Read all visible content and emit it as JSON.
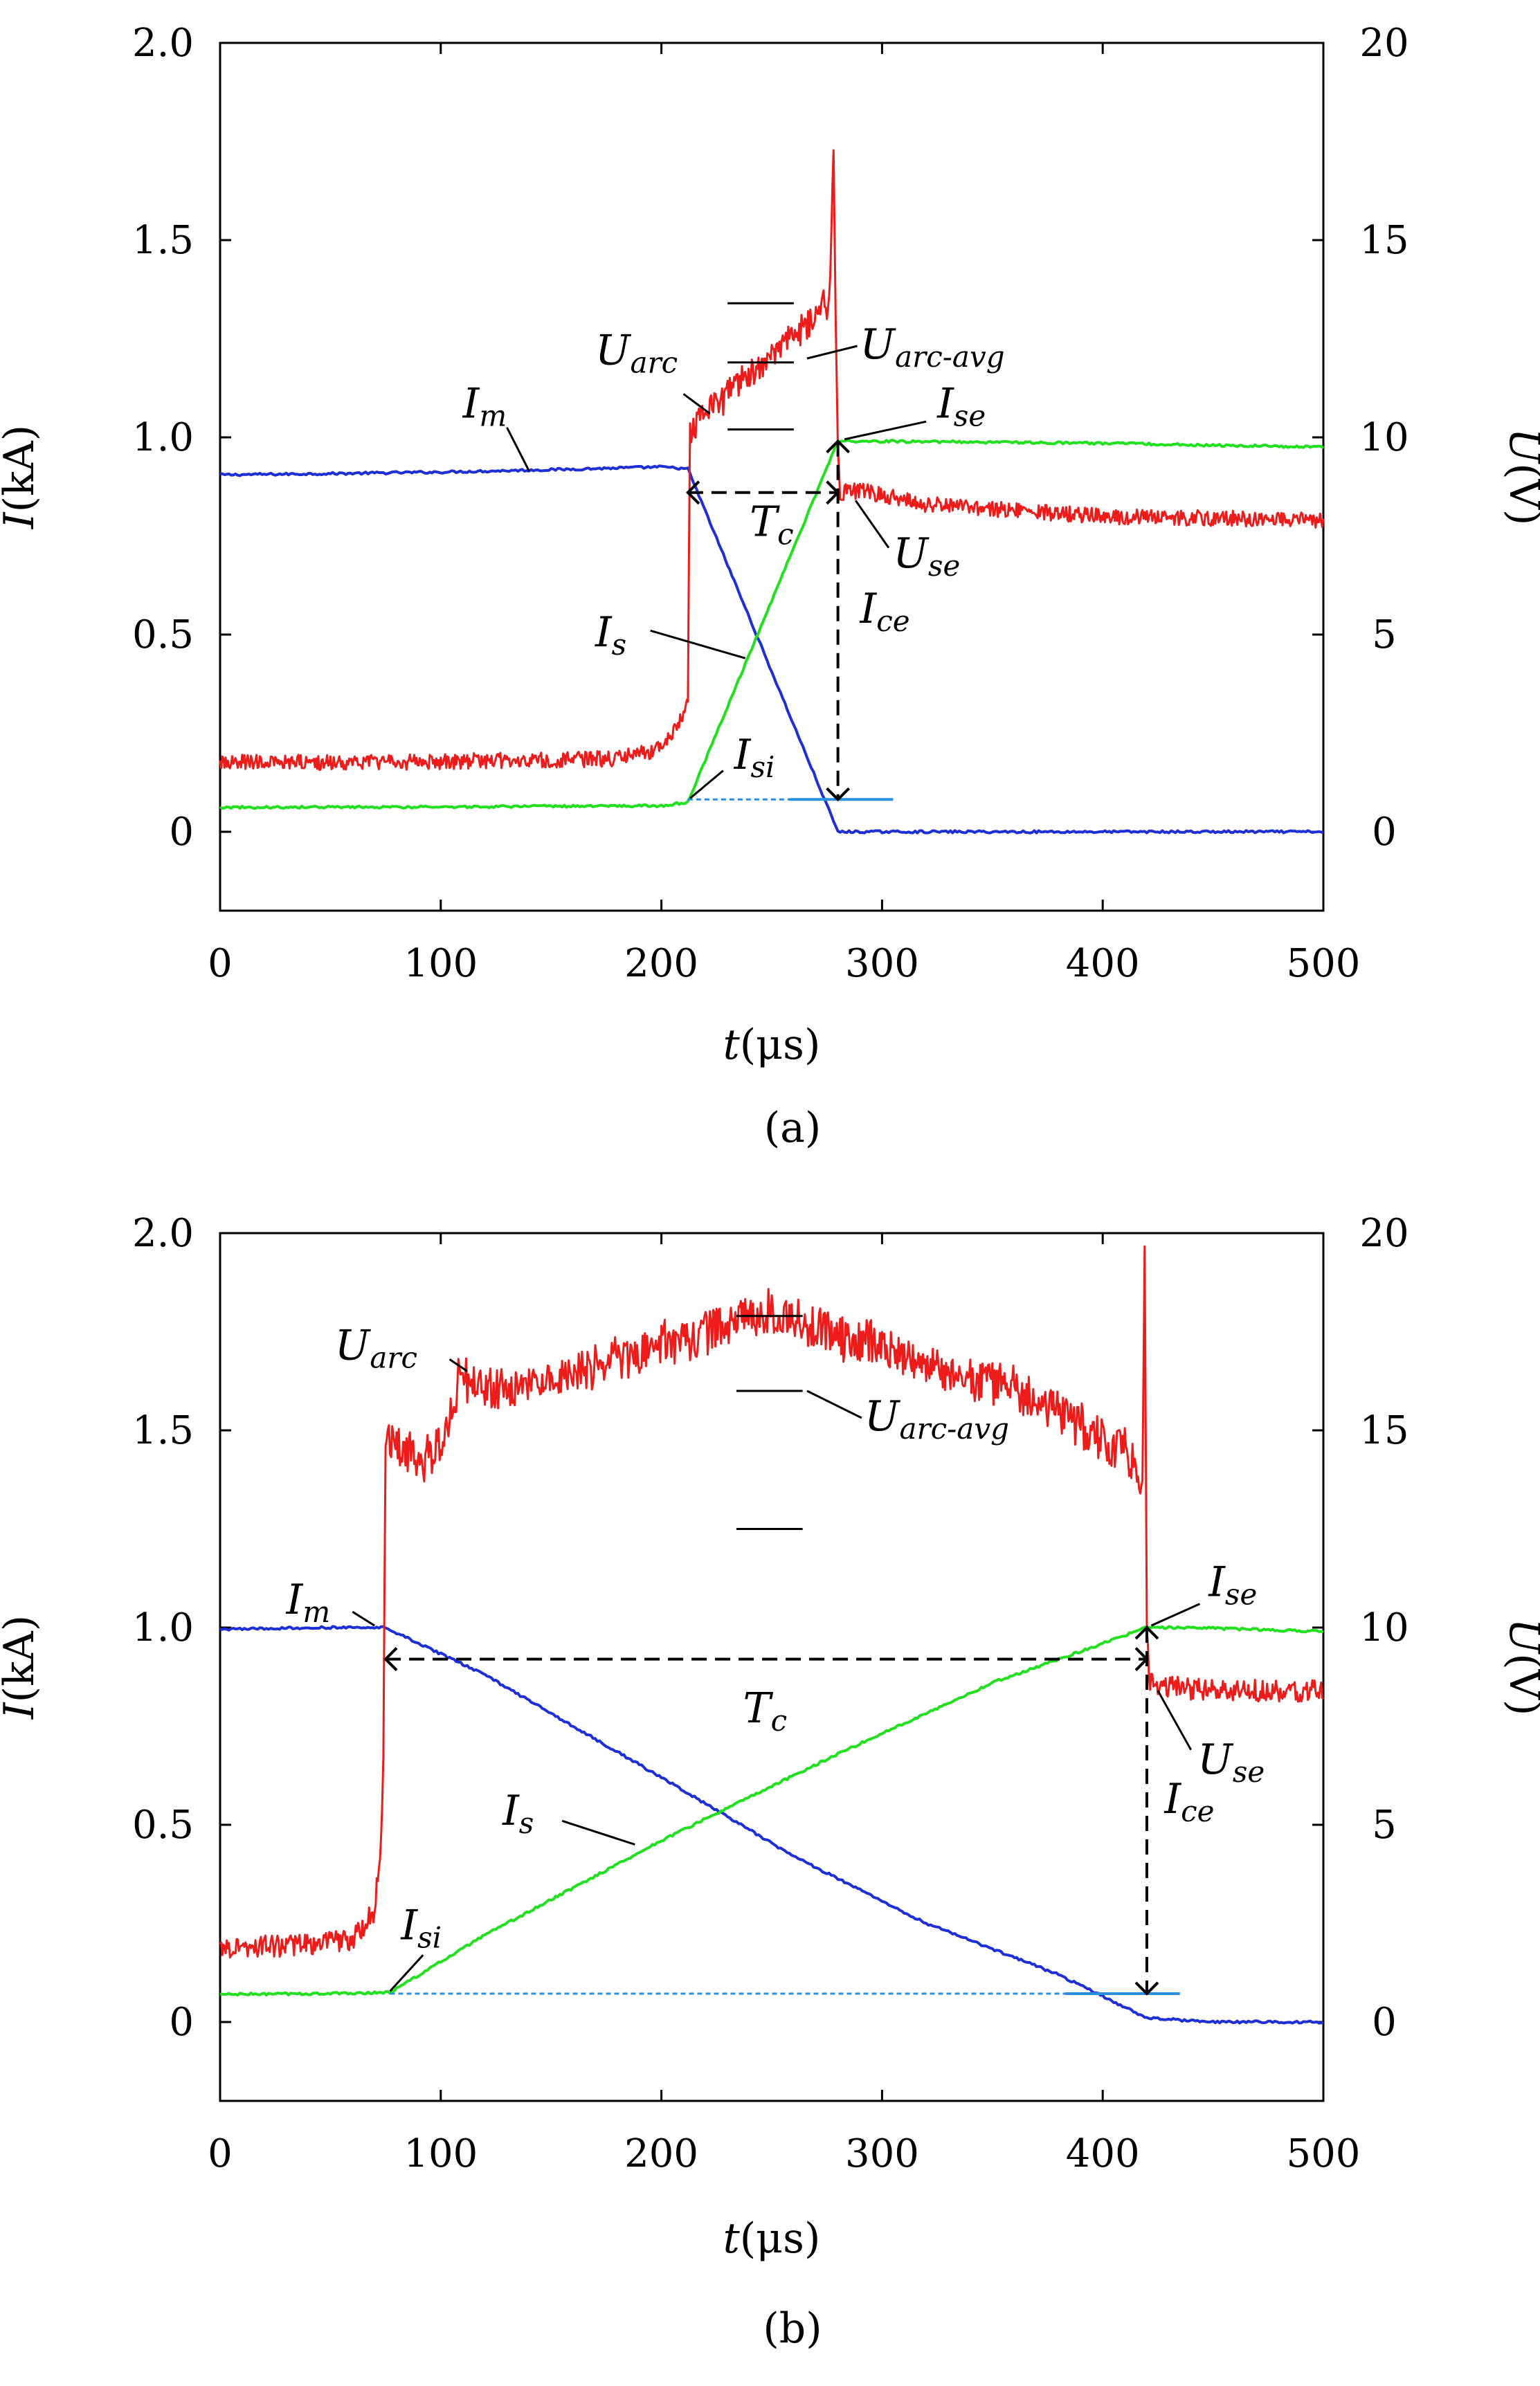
{
  "chart_data": [
    {
      "type": "line",
      "caption": "(a)",
      "xlabel_var": "t",
      "xlabel_unit": "(μs)",
      "ylabel_var": "I",
      "ylabel_unit": "(kA)",
      "y2label_var": "U",
      "y2label_unit": "(V)",
      "xlim": [
        0,
        500
      ],
      "ylim": [
        -0.2,
        2.0
      ],
      "y2lim": [
        -2,
        20
      ],
      "xticks": [
        "0",
        "100",
        "200",
        "300",
        "400",
        "500"
      ],
      "yticks": [
        "0",
        "0.5",
        "1.0",
        "1.5",
        "2.0"
      ],
      "y2ticks": [
        "0",
        "5",
        "10",
        "15",
        "20"
      ],
      "colors": {
        "Im": "#1f2fd6",
        "Is": "#22e01f",
        "U": "#ee1b1b",
        "ref": "#2b8fe0",
        "axis": "#000000"
      },
      "series": [
        {
          "name": "I_m",
          "axis": "left",
          "color": "#1f2fd6",
          "x": [
            0,
            50,
            100,
            150,
            200,
            212,
            280,
            300,
            400,
            500
          ],
          "y": [
            0.905,
            0.908,
            0.912,
            0.918,
            0.925,
            0.92,
            0.0,
            0.0,
            0.0,
            0.0
          ]
        },
        {
          "name": "I_s",
          "axis": "left",
          "color": "#22e01f",
          "x": [
            0,
            100,
            200,
            212,
            280,
            300,
            400,
            500
          ],
          "y": [
            0.062,
            0.063,
            0.066,
            0.075,
            0.99,
            0.99,
            0.985,
            0.975
          ]
        },
        {
          "name": "U",
          "axis": "right",
          "color": "#ee1b1b",
          "x": [
            0,
            100,
            180,
            200,
            208,
            212,
            213,
            225,
            240,
            255,
            270,
            276,
            278,
            279,
            280,
            281,
            290,
            320,
            400,
            500
          ],
          "y": [
            1.75,
            1.78,
            1.85,
            2.1,
            2.7,
            3.5,
            10.3,
            10.9,
            11.6,
            12.3,
            13.1,
            13.4,
            17.4,
            13.0,
            9.7,
            8.6,
            8.65,
            8.3,
            8.0,
            7.9
          ],
          "noise": 0.2
        },
        {
          "name": "I_si reference",
          "axis": "left",
          "color": "#2b8fe0",
          "dashed_until": 258,
          "x": [
            212,
            305
          ],
          "y": [
            0.082,
            0.082
          ]
        }
      ],
      "avg_marks": {
        "x": [
          230,
          260
        ],
        "levels_v": [
          13.4,
          11.9,
          10.2
        ],
        "connector": {
          "x": 266,
          "y": 12.0
        }
      },
      "tc_arrow": {
        "x1": 212,
        "x2": 280,
        "i": 0.86
      },
      "ice_arrow": {
        "x": 280,
        "i_top": 0.99,
        "i_bottom": 0.082
      },
      "labels": [
        {
          "id": "Im",
          "main": "I",
          "sub": "m",
          "tx": 110,
          "ty": 1.05,
          "lx1": 130,
          "ly1": 1.025,
          "lx2": 140,
          "ly2": 0.915
        },
        {
          "id": "Uarc",
          "main": "U",
          "sub": "arc",
          "tx": 170,
          "ty": 1.185,
          "lx1": 210,
          "ly1": 1.11,
          "lx2": 222,
          "ly2": 1.06
        },
        {
          "id": "Uarcavg",
          "main": "U",
          "sub": "arc-avg",
          "tx": 290,
          "ty": 1.2
        },
        {
          "id": "Ise",
          "main": "I",
          "sub": "se",
          "tx": 325,
          "ty": 1.05,
          "lx1": 320,
          "ly1": 1.04,
          "lx2": 283,
          "ly2": 0.995
        },
        {
          "id": "Tc",
          "main": "T",
          "sub": "c",
          "tx": 240,
          "ty": 0.75
        },
        {
          "id": "Use",
          "main": "U",
          "sub": "se",
          "tx": 305,
          "ty": 0.67,
          "lx1": 303,
          "ly1": 0.72,
          "lx2": 288,
          "ly2": 0.84
        },
        {
          "id": "Ice",
          "main": "I",
          "sub": "ce",
          "tx": 290,
          "ty": 0.53
        },
        {
          "id": "Is",
          "main": "I",
          "sub": "s",
          "tx": 170,
          "ty": 0.47,
          "lx1": 195,
          "ly1": 0.51,
          "lx2": 238,
          "ly2": 0.44
        },
        {
          "id": "Isi",
          "main": "I",
          "sub": "si",
          "tx": 233,
          "ty": 0.16,
          "lx1": 228,
          "ly1": 0.155,
          "lx2": 213,
          "ly2": 0.085
        }
      ]
    },
    {
      "type": "line",
      "caption": "(b)",
      "xlabel_var": "t",
      "xlabel_unit": "(μs)",
      "ylabel_var": "I",
      "ylabel_unit": "(kA)",
      "y2label_var": "U",
      "y2label_unit": "(V)",
      "xlim": [
        0,
        500
      ],
      "ylim": [
        -0.2,
        2.0
      ],
      "y2lim": [
        -2,
        20
      ],
      "xticks": [
        "0",
        "100",
        "200",
        "300",
        "400",
        "500"
      ],
      "yticks": [
        "0",
        "0.5",
        "1.0",
        "1.5",
        "2.0"
      ],
      "y2ticks": [
        "0",
        "5",
        "10",
        "15",
        "20"
      ],
      "colors": {
        "Im": "#1f2fd6",
        "Is": "#22e01f",
        "U": "#ee1b1b",
        "ref": "#2b8fe0",
        "axis": "#000000"
      },
      "series": [
        {
          "name": "I_m",
          "axis": "left",
          "color": "#1f2fd6",
          "x": [
            0,
            40,
            75,
            120,
            200,
            260,
            320,
            380,
            420,
            450,
            500
          ],
          "y": [
            0.995,
            1.0,
            1.0,
            0.88,
            0.62,
            0.42,
            0.25,
            0.12,
            0.01,
            0.0,
            0.0
          ]
        },
        {
          "name": "I_s",
          "axis": "left",
          "color": "#22e01f",
          "x": [
            0,
            50,
            77,
            120,
            200,
            280,
            350,
            400,
            420,
            440,
            500
          ],
          "y": [
            0.07,
            0.072,
            0.075,
            0.22,
            0.46,
            0.68,
            0.86,
            0.96,
            1.0,
            1.0,
            0.99
          ]
        },
        {
          "name": "U",
          "axis": "right",
          "color": "#ee1b1b",
          "x": [
            0,
            40,
            60,
            70,
            73,
            74,
            75,
            85,
            95,
            105,
            108,
            130,
            180,
            250,
            320,
            360,
            380,
            400,
            410,
            415,
            418,
            419,
            420,
            421,
            425,
            440,
            460,
            500
          ],
          "y": [
            1.9,
            1.95,
            2.1,
            2.8,
            4.5,
            7.0,
            14.8,
            14.4,
            14.3,
            15.2,
            16.4,
            16.0,
            16.8,
            18.0,
            16.7,
            16.0,
            15.5,
            14.7,
            14.5,
            14.0,
            13.5,
            19.8,
            10.0,
            8.6,
            8.5,
            8.45,
            8.4,
            8.4
          ],
          "noise": 0.28
        },
        {
          "name": "I_si reference",
          "axis": "left",
          "color": "#2b8fe0",
          "dashed_until": 383,
          "x": [
            77,
            435
          ],
          "y": [
            0.072,
            0.072
          ]
        }
      ],
      "avg_marks": {
        "x": [
          234,
          264
        ],
        "levels_v": [
          17.9,
          16.0,
          12.5
        ],
        "connector": {
          "x": 266,
          "y": 16.0
        }
      },
      "tc_arrow": {
        "x1": 75,
        "x2": 420,
        "i": 0.92
      },
      "ice_arrow": {
        "x": 420,
        "i_top": 1.0,
        "i_bottom": 0.072
      },
      "labels": [
        {
          "id": "Im",
          "main": "I",
          "sub": "m",
          "tx": 30,
          "ty": 1.035,
          "lx1": 60,
          "ly1": 1.04,
          "lx2": 70,
          "ly2": 1.005
        },
        {
          "id": "Uarc",
          "main": "U",
          "sub": "arc",
          "tx": 52,
          "ty": 1.68,
          "lx1": 104,
          "ly1": 1.68,
          "lx2": 112,
          "ly2": 1.65
        },
        {
          "id": "Uarcavg",
          "main": "U",
          "sub": "arc-avg",
          "tx": 292,
          "ty": 1.5
        },
        {
          "id": "Ise",
          "main": "I",
          "sub": "se",
          "tx": 448,
          "ty": 1.08,
          "lx1": 444,
          "ly1": 1.06,
          "lx2": 422,
          "ly2": 1.005
        },
        {
          "id": "Tc",
          "main": "T",
          "sub": "c",
          "tx": 237,
          "ty": 0.76
        },
        {
          "id": "Use",
          "main": "U",
          "sub": "se",
          "tx": 443,
          "ty": 0.63,
          "lx1": 440,
          "ly1": 0.69,
          "lx2": 425,
          "ly2": 0.84
        },
        {
          "id": "Ice",
          "main": "I",
          "sub": "ce",
          "tx": 428,
          "ty": 0.53
        },
        {
          "id": "Is",
          "main": "I",
          "sub": "s",
          "tx": 128,
          "ty": 0.5,
          "lx1": 155,
          "ly1": 0.51,
          "lx2": 188,
          "ly2": 0.45
        },
        {
          "id": "Isi",
          "main": "I",
          "sub": "si",
          "tx": 82,
          "ty": 0.21,
          "lx1": 92,
          "ly1": 0.17,
          "lx2": 77,
          "ly2": 0.078
        }
      ]
    }
  ]
}
